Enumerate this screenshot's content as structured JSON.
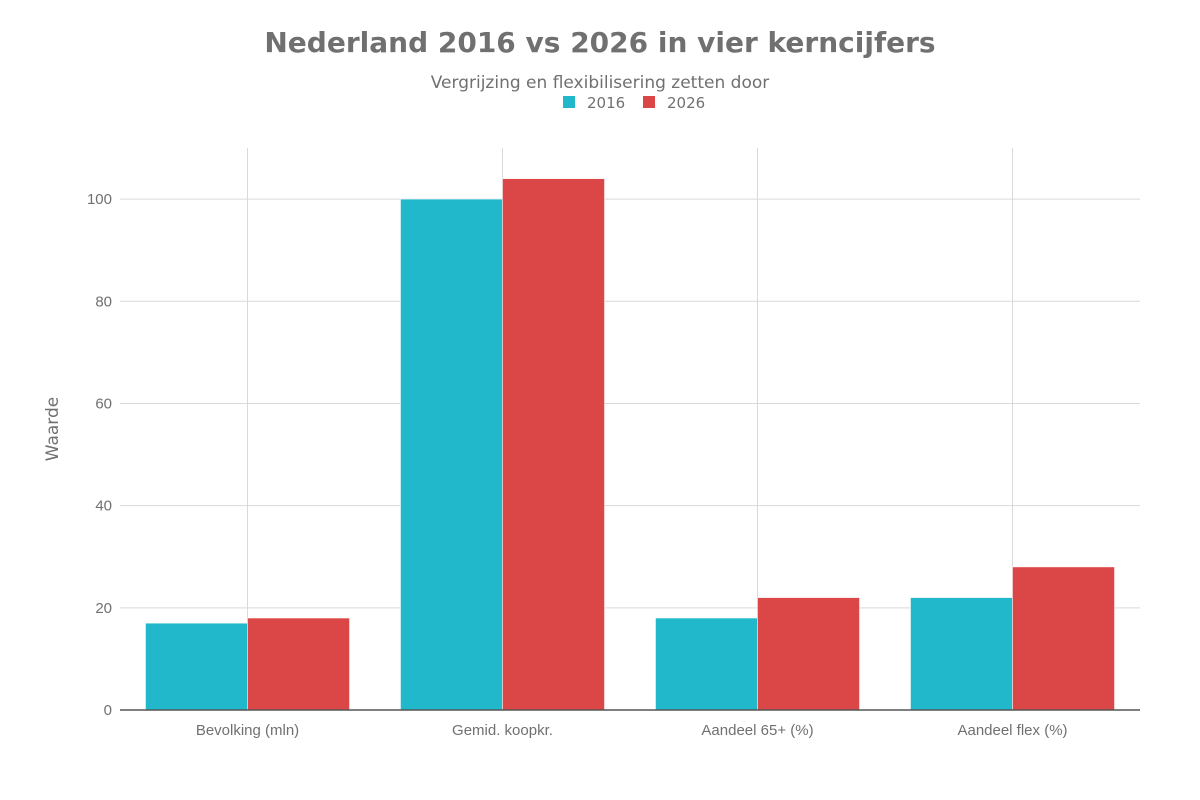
{
  "chart_data": {
    "type": "bar",
    "title": "Nederland 2016 vs 2026 in vier kerncijfers",
    "subtitle": "Vergrijzing en flexibilisering zetten door",
    "xlabel": "",
    "ylabel": "Waarde",
    "categories": [
      "Bevolking (mln)",
      "Gemid. koopkr.",
      "Aandeel 65+ (%)",
      "Aandeel flex (%)"
    ],
    "series": [
      {
        "name": "2016",
        "color": "#22b8cc",
        "values": [
          17,
          100,
          18,
          22
        ]
      },
      {
        "name": "2026",
        "color": "#db4646",
        "values": [
          18,
          104,
          22,
          28
        ]
      }
    ],
    "ylim": [
      0,
      110
    ],
    "yticks": [
      0,
      20,
      40,
      60,
      80,
      100
    ],
    "grid": true,
    "legend_position": "top-center"
  }
}
